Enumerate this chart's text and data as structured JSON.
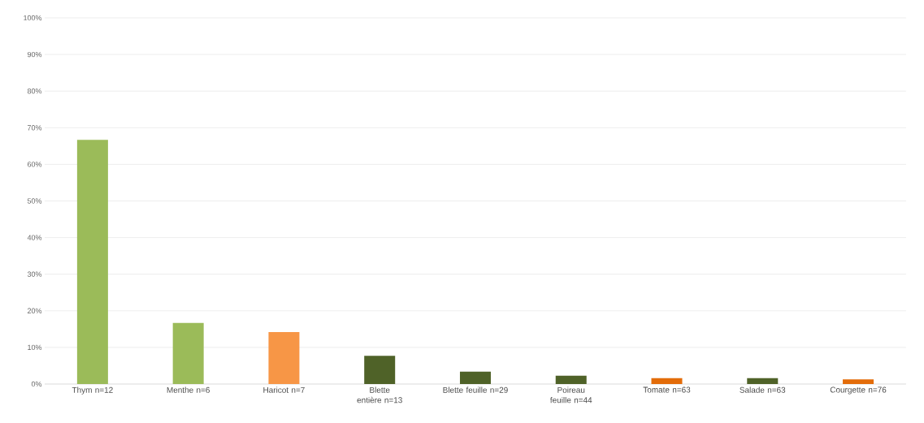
{
  "chart_data": {
    "type": "bar",
    "categories": [
      "Thym n=12",
      "Menthe n=6",
      "Haricot n=7",
      "Blette entière n=13",
      "Blette feuille n=29",
      "Poireau feuille n=44",
      "Tomate n=63",
      "Salade n=63",
      "Courgette n=76"
    ],
    "values": [
      66.7,
      16.7,
      14.2,
      7.7,
      3.4,
      2.3,
      1.6,
      1.6,
      1.3
    ],
    "colors": [
      "#9bbb59",
      "#9bbb59",
      "#f79646",
      "#4f6228",
      "#4f6228",
      "#4f6228",
      "#e36c09",
      "#4f6228",
      "#e36c09"
    ],
    "ylim": [
      0,
      100
    ],
    "yticks": [
      {
        "value": 0,
        "label": "0%"
      },
      {
        "value": 10,
        "label": "10%"
      },
      {
        "value": 20,
        "label": "20%"
      },
      {
        "value": 30,
        "label": "30%"
      },
      {
        "value": 40,
        "label": "40%"
      },
      {
        "value": 50,
        "label": "50%"
      },
      {
        "value": 60,
        "label": "60%"
      },
      {
        "value": 70,
        "label": "70%"
      },
      {
        "value": 80,
        "label": "80%"
      },
      {
        "value": 90,
        "label": "90%"
      },
      {
        "value": 100,
        "label": "100%"
      }
    ],
    "grid": "y"
  }
}
